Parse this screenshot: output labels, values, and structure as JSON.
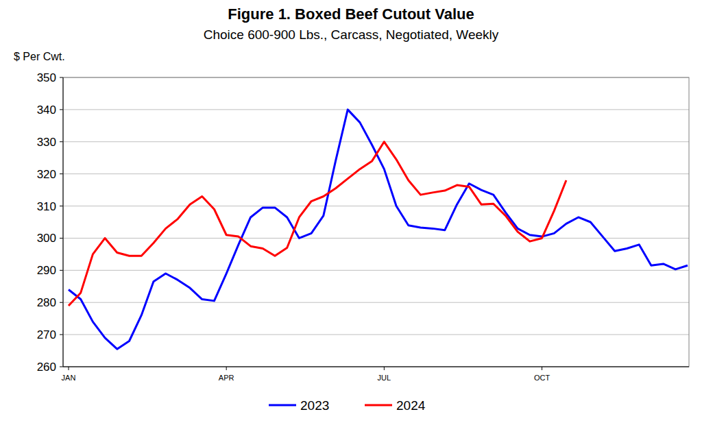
{
  "chart_data": {
    "type": "line",
    "title": "Figure 1. Boxed Beef Cutout Value",
    "subtitle": "Choice 600-900 Lbs., Carcass, Negotiated, Weekly",
    "ylabel": "$ Per Cwt.",
    "categories": [
      "JAN",
      null,
      null,
      null,
      null,
      null,
      null,
      null,
      null,
      null,
      null,
      null,
      null,
      "APR",
      null,
      null,
      null,
      null,
      null,
      null,
      null,
      null,
      null,
      null,
      null,
      null,
      "JUL",
      null,
      null,
      null,
      null,
      null,
      null,
      null,
      null,
      null,
      null,
      null,
      null,
      "OCT",
      null,
      null,
      null,
      null,
      null,
      null,
      null,
      null,
      null,
      null,
      null,
      null
    ],
    "series": [
      {
        "name": "2023",
        "color": "#0000ff",
        "values": [
          284,
          281,
          274,
          269,
          265.5,
          268,
          276,
          286.5,
          289,
          287,
          284.5,
          281,
          280.5,
          289,
          298,
          306.5,
          309.5,
          309.5,
          306.5,
          300,
          301.5,
          307,
          324,
          340,
          336,
          329,
          321.5,
          310,
          304,
          303.3,
          303,
          302.5,
          310.5,
          317,
          315,
          313.5,
          308,
          303,
          301,
          300.5,
          301.5,
          304.5,
          306.5,
          305,
          300.5,
          296,
          296.8,
          298,
          291.5,
          292,
          290.3,
          291.5
        ]
      },
      {
        "name": "2024",
        "color": "#ff0000",
        "values": [
          279,
          283,
          295,
          300,
          295.5,
          294.5,
          294.5,
          298.5,
          303,
          306,
          310.5,
          313,
          309,
          301,
          300.5,
          297.5,
          296.8,
          294.5,
          297,
          306.5,
          311.5,
          313,
          315.5,
          318.5,
          321.5,
          324,
          330,
          324.5,
          318,
          313.5,
          314.2,
          314.8,
          316.5,
          316,
          310.5,
          310.7,
          307,
          302,
          299,
          300,
          308.5,
          318,
          null,
          null,
          null,
          null,
          null,
          null,
          null,
          null,
          null,
          null
        ]
      }
    ],
    "ylim": [
      260,
      350
    ],
    "yticks": [
      260,
      270,
      280,
      290,
      300,
      310,
      320,
      330,
      340,
      350
    ],
    "grid": true,
    "legend": "bottom"
  }
}
